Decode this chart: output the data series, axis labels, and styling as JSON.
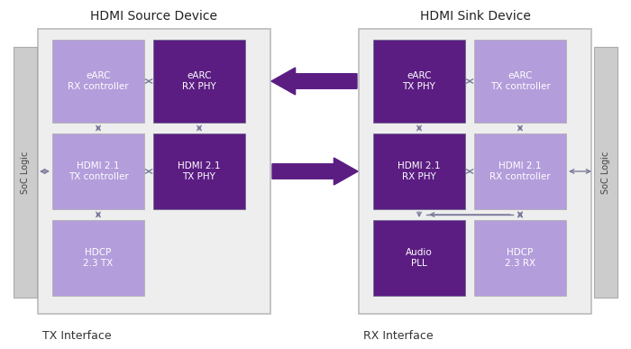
{
  "title_left": "HDMI Source Device",
  "title_right": "HDMI Sink Device",
  "label_bottom_left": "TX Interface",
  "label_bottom_right": "RX Interface",
  "soc_label": "SoC Logic",
  "bg_color": "#ffffff",
  "outer_box_fill": "#eeeeee",
  "outer_box_edge": "#bbbbbb",
  "soc_box_fill": "#cccccc",
  "soc_box_edge": "#aaaaaa",
  "light_purple": "#b39ddb",
  "dark_purple": "#5b1d82",
  "arrow_color": "#7b7b9b",
  "big_arrow_color": "#5b1d82",
  "title_fontsize": 10,
  "block_fontsize": 7.5,
  "label_fontsize": 9,
  "soc_fontsize": 7
}
